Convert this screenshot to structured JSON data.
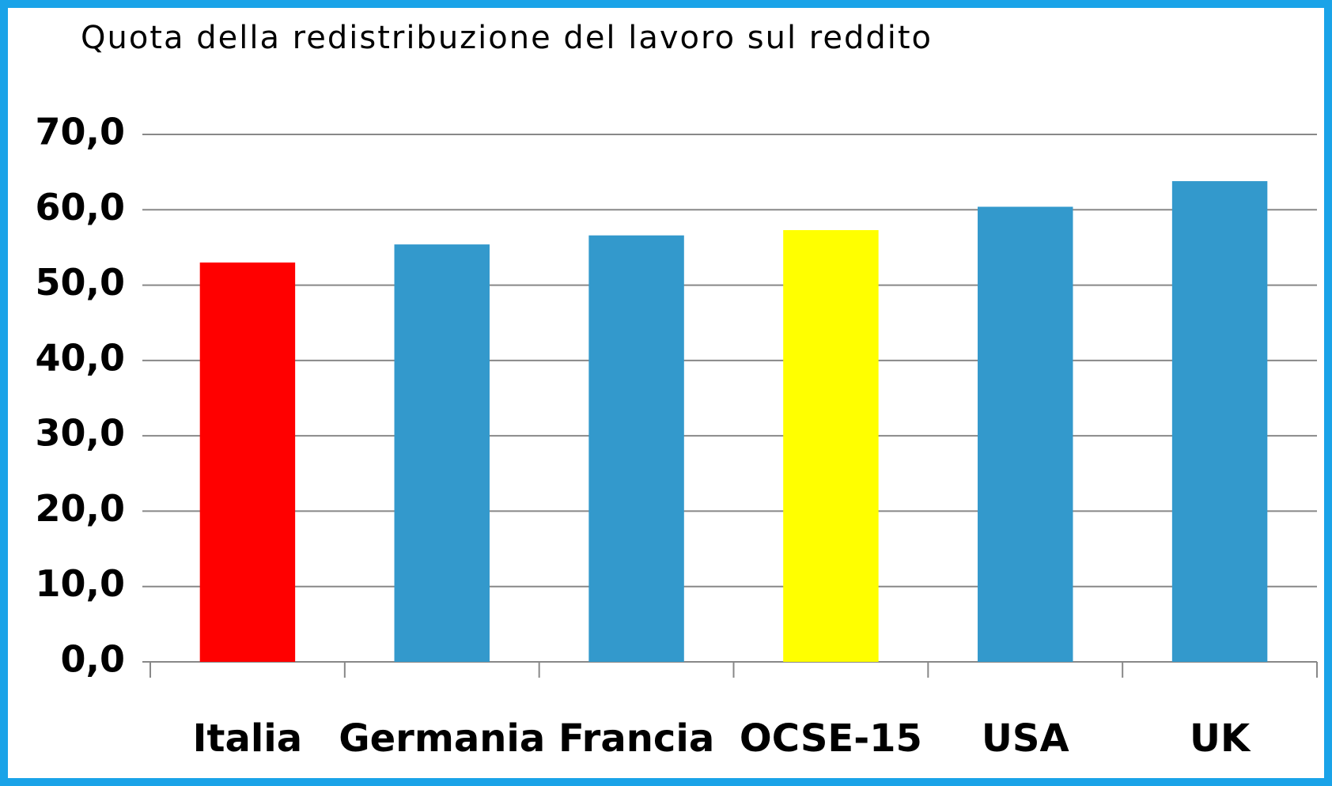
{
  "chart_data": {
    "type": "bar",
    "title": "Quota della redistribuzione del lavoro sul reddito",
    "categories": [
      "Italia",
      "Germania",
      "Francia",
      "OCSE-15",
      "USA",
      "UK"
    ],
    "values": [
      53.0,
      55.4,
      56.6,
      57.3,
      60.4,
      63.8
    ],
    "colors": [
      "#ff0000",
      "#3399cc",
      "#3399cc",
      "#ffff00",
      "#3399cc",
      "#3399cc"
    ],
    "ylim": [
      0,
      70
    ],
    "yticks": [
      {
        "value": 0,
        "label": "0,0"
      },
      {
        "value": 10,
        "label": "10,0"
      },
      {
        "value": 20,
        "label": "20,0"
      },
      {
        "value": 30,
        "label": "30,0"
      },
      {
        "value": 40,
        "label": "40,0"
      },
      {
        "value": 50,
        "label": "50,0"
      },
      {
        "value": 60,
        "label": "60,0"
      },
      {
        "value": 70,
        "label": "70,0"
      }
    ],
    "grid": true
  }
}
